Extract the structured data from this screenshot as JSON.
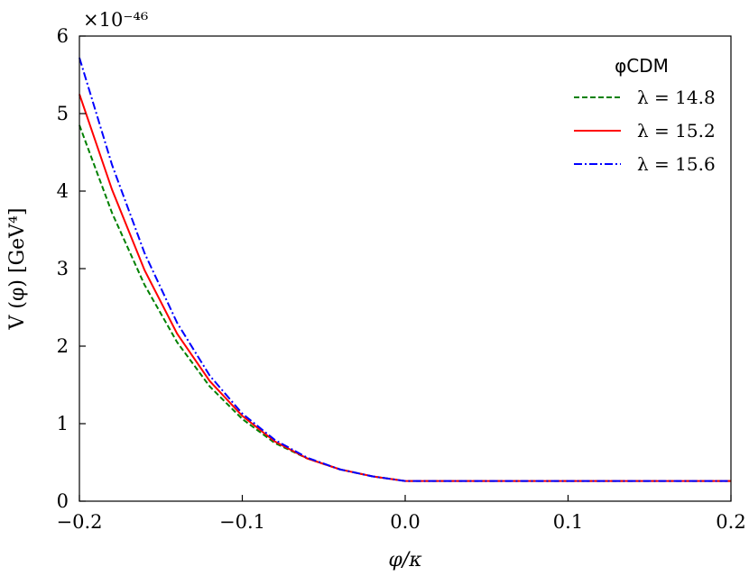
{
  "chart_data": {
    "type": "line",
    "title": "",
    "xlabel": "φ/κ",
    "ylabel": "V (φ) [GeV⁴]",
    "offset_text": "×10⁻⁴⁶",
    "xlim": [
      -0.2,
      0.2
    ],
    "ylim": [
      0,
      6
    ],
    "xticks": [
      -0.2,
      -0.1,
      0.0,
      0.1,
      0.2
    ],
    "xtick_labels": [
      "−0.2",
      "−0.1",
      "0.0",
      "0.1",
      "0.2"
    ],
    "yticks": [
      0,
      1,
      2,
      3,
      4,
      5,
      6
    ],
    "ytick_labels": [
      "0",
      "1",
      "2",
      "3",
      "4",
      "5",
      "6"
    ],
    "grid": false,
    "legend": {
      "title": "φCDM",
      "position": "top-right"
    },
    "x": [
      -0.2,
      -0.18,
      -0.16,
      -0.14,
      -0.12,
      -0.1,
      -0.08,
      -0.06,
      -0.04,
      -0.02,
      0.0,
      0.05,
      0.1,
      0.15,
      0.2
    ],
    "series": [
      {
        "name": "λ = 14.8",
        "color": "#008000",
        "style": "dashed",
        "values": [
          4.85,
          3.72,
          2.79,
          2.05,
          1.48,
          1.06,
          0.75,
          0.55,
          0.41,
          0.32,
          0.26,
          0.26,
          0.26,
          0.26,
          0.26
        ]
      },
      {
        "name": "λ = 15.2",
        "color": "#ff0000",
        "style": "solid",
        "values": [
          5.25,
          4.02,
          2.98,
          2.16,
          1.55,
          1.1,
          0.77,
          0.55,
          0.41,
          0.32,
          0.26,
          0.26,
          0.26,
          0.26,
          0.26
        ]
      },
      {
        "name": "λ = 15.6",
        "color": "#0000ff",
        "style": "dashdot",
        "values": [
          5.72,
          4.34,
          3.2,
          2.3,
          1.62,
          1.13,
          0.79,
          0.56,
          0.41,
          0.32,
          0.26,
          0.26,
          0.26,
          0.26,
          0.26
        ]
      }
    ]
  }
}
